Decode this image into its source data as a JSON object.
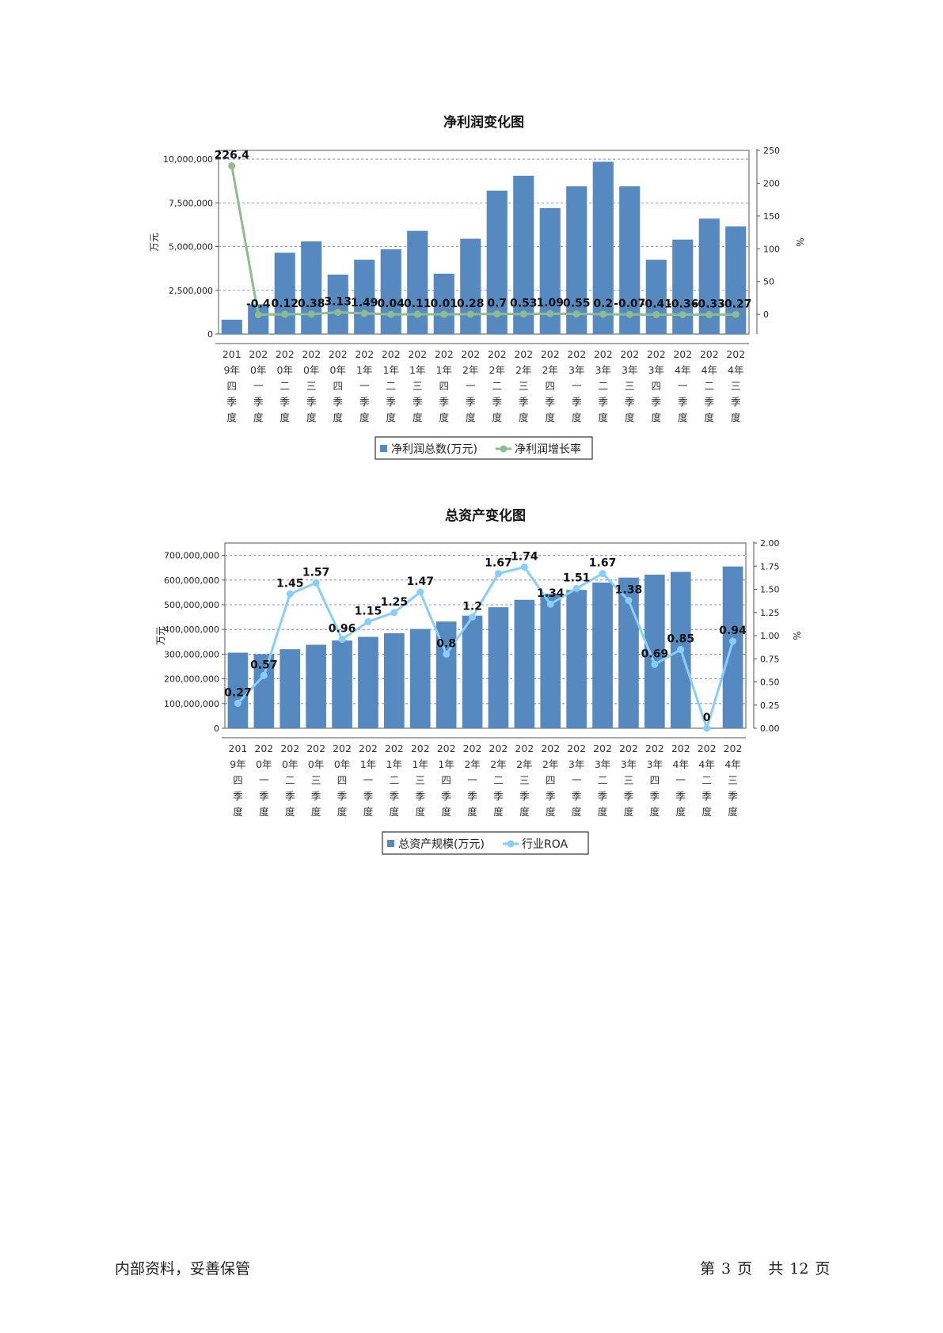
{
  "chart_data": [
    {
      "type": "bar",
      "title": "净利润变化图",
      "ylabel_left": "万元",
      "ylabel_right": "%",
      "ylim_left": [
        0,
        10500000
      ],
      "ylim_right": [
        -30,
        250
      ],
      "left_ticks": [
        "0",
        "2,500,000",
        "5,000,000",
        "7,500,000",
        "10,000,000"
      ],
      "left_tick_values": [
        0,
        2500000,
        5000000,
        7500000,
        10000000
      ],
      "right_ticks": [
        "0",
        "50",
        "100",
        "150",
        "200",
        "250"
      ],
      "right_tick_values": [
        0,
        50,
        100,
        150,
        200,
        250
      ],
      "categories": [
        "2019年四季度",
        "2020年一季度",
        "2020年二季度",
        "2020年三季度",
        "2020年四季度",
        "2021年一季度",
        "2021年二季度",
        "2021年三季度",
        "2021年四季度",
        "2022年一季度",
        "2022年二季度",
        "2022年三季度",
        "2022年四季度",
        "2023年一季度",
        "2023年二季度",
        "2023年三季度",
        "2023年四季度",
        "2024年一季度",
        "2024年二季度",
        "2024年三季度"
      ],
      "category_labels": [
        [
          "201",
          "9年",
          "四",
          "季",
          "度"
        ],
        [
          "202",
          "0年",
          "一",
          "季",
          "度"
        ],
        [
          "202",
          "0年",
          "二",
          "季",
          "度"
        ],
        [
          "202",
          "0年",
          "三",
          "季",
          "度"
        ],
        [
          "202",
          "0年",
          "四",
          "季",
          "度"
        ],
        [
          "202",
          "1年",
          "一",
          "季",
          "度"
        ],
        [
          "202",
          "1年",
          "二",
          "季",
          "度"
        ],
        [
          "202",
          "1年",
          "三",
          "季",
          "度"
        ],
        [
          "202",
          "1年",
          "四",
          "季",
          "度"
        ],
        [
          "202",
          "2年",
          "一",
          "季",
          "度"
        ],
        [
          "202",
          "2年",
          "二",
          "季",
          "度"
        ],
        [
          "202",
          "2年",
          "三",
          "季",
          "度"
        ],
        [
          "202",
          "2年",
          "四",
          "季",
          "度"
        ],
        [
          "202",
          "3年",
          "一",
          "季",
          "度"
        ],
        [
          "202",
          "3年",
          "二",
          "季",
          "度"
        ],
        [
          "202",
          "3年",
          "三",
          "季",
          "度"
        ],
        [
          "202",
          "3年",
          "四",
          "季",
          "度"
        ],
        [
          "202",
          "4年",
          "一",
          "季",
          "度"
        ],
        [
          "202",
          "4年",
          "二",
          "季",
          "度"
        ],
        [
          "202",
          "4年",
          "三",
          "季",
          "度"
        ]
      ],
      "series": [
        {
          "name": "净利润总数(万元)",
          "kind": "bar",
          "color": "#5689c0",
          "values": [
            820000,
            1700000,
            4650000,
            5300000,
            3400000,
            4250000,
            4850000,
            5900000,
            3450000,
            5450000,
            8200000,
            9050000,
            7200000,
            8450000,
            9850000,
            8450000,
            4250000,
            5400000,
            6600000,
            6150000
          ]
        },
        {
          "name": "净利润增长率",
          "kind": "line",
          "color": "#8fbc8f",
          "values": [
            226.4,
            -0.4,
            0.12,
            0.38,
            3.13,
            1.49,
            0.04,
            0.11,
            0.01,
            0.28,
            0.7,
            0.53,
            1.09,
            0.55,
            0.2,
            -0.07,
            -0.41,
            -0.36,
            -0.33,
            -0.27
          ],
          "labels": [
            "226.4",
            "-0.4",
            "0.12",
            "0.38",
            "3.13",
            "1.49",
            "0.04",
            "0.11",
            "0.01",
            "0.28",
            "0.7",
            "0.53",
            "1.09",
            "0.55",
            "0.2",
            "-0.07",
            "-0.41",
            "-0.36",
            "-0.33",
            "-0.27"
          ]
        }
      ],
      "grid": true,
      "legend_position": "bottom"
    },
    {
      "type": "bar",
      "title": "总资产变化图",
      "ylabel_left": "万元",
      "ylabel_right": "%",
      "ylim_left": [
        0,
        750000000
      ],
      "ylim_right": [
        0,
        2.0
      ],
      "left_ticks": [
        "0",
        "100,000,000",
        "200,000,000",
        "300,000,000",
        "400,000,000",
        "500,000,000",
        "600,000,000",
        "700,000,000"
      ],
      "left_tick_values": [
        0,
        100000000,
        200000000,
        300000000,
        400000000,
        500000000,
        600000000,
        700000000
      ],
      "right_ticks": [
        "0.00",
        "0.25",
        "0.50",
        "0.75",
        "1.00",
        "1.25",
        "1.50",
        "1.75",
        "2.00"
      ],
      "right_tick_values": [
        0,
        0.25,
        0.5,
        0.75,
        1.0,
        1.25,
        1.5,
        1.75,
        2.0
      ],
      "categories": [
        "2019年四季度",
        "2020年一季度",
        "2020年二季度",
        "2020年三季度",
        "2020年四季度",
        "2021年一季度",
        "2021年二季度",
        "2021年三季度",
        "2021年四季度",
        "2022年一季度",
        "2022年二季度",
        "2022年三季度",
        "2022年四季度",
        "2023年一季度",
        "2023年二季度",
        "2023年三季度",
        "2023年四季度",
        "2024年一季度",
        "2024年二季度",
        "2024年三季度"
      ],
      "category_labels": [
        [
          "201",
          "9年",
          "四",
          "季",
          "度"
        ],
        [
          "202",
          "0年",
          "一",
          "季",
          "度"
        ],
        [
          "202",
          "0年",
          "二",
          "季",
          "度"
        ],
        [
          "202",
          "0年",
          "三",
          "季",
          "度"
        ],
        [
          "202",
          "0年",
          "四",
          "季",
          "度"
        ],
        [
          "202",
          "1年",
          "一",
          "季",
          "度"
        ],
        [
          "202",
          "1年",
          "二",
          "季",
          "度"
        ],
        [
          "202",
          "1年",
          "三",
          "季",
          "度"
        ],
        [
          "202",
          "1年",
          "四",
          "季",
          "度"
        ],
        [
          "202",
          "2年",
          "一",
          "季",
          "度"
        ],
        [
          "202",
          "2年",
          "二",
          "季",
          "度"
        ],
        [
          "202",
          "2年",
          "三",
          "季",
          "度"
        ],
        [
          "202",
          "2年",
          "四",
          "季",
          "度"
        ],
        [
          "202",
          "3年",
          "一",
          "季",
          "度"
        ],
        [
          "202",
          "3年",
          "二",
          "季",
          "度"
        ],
        [
          "202",
          "3年",
          "三",
          "季",
          "度"
        ],
        [
          "202",
          "3年",
          "四",
          "季",
          "度"
        ],
        [
          "202",
          "4年",
          "一",
          "季",
          "度"
        ],
        [
          "202",
          "4年",
          "二",
          "季",
          "度"
        ],
        [
          "202",
          "4年",
          "三",
          "季",
          "度"
        ]
      ],
      "series": [
        {
          "name": "总资产规模(万元)",
          "kind": "bar",
          "color": "#5689c0",
          "values": [
            306000000,
            300000000,
            320000000,
            338000000,
            355000000,
            370000000,
            385000000,
            402000000,
            432000000,
            456000000,
            490000000,
            520000000,
            545000000,
            560000000,
            590000000,
            610000000,
            622000000,
            633000000,
            null,
            655000000
          ]
        },
        {
          "name": "行业ROA",
          "kind": "line",
          "color": "#87cefa",
          "values": [
            0.27,
            0.57,
            1.45,
            1.57,
            0.96,
            1.15,
            1.25,
            1.47,
            0.8,
            1.2,
            1.67,
            1.74,
            1.34,
            1.51,
            1.67,
            1.38,
            0.69,
            0.85,
            0,
            0.94
          ],
          "labels": [
            "0.27",
            "0.57",
            "1.45",
            "1.57",
            "0.96",
            "1.15",
            "1.25",
            "1.47",
            "0.8",
            "1.2",
            "1.67",
            "1.74",
            "1.34",
            "1.51",
            "1.67",
            "1.38",
            "0.69",
            "0.85",
            "0",
            "0.94"
          ]
        }
      ],
      "grid": true,
      "legend_position": "bottom"
    }
  ],
  "footer": {
    "left": "内部资料，妥善保管",
    "page_label_prefix": "第",
    "page_current": "3",
    "page_label_suffix": "页",
    "total_label_prefix": "共",
    "page_total": "12",
    "total_label_suffix": "页"
  }
}
